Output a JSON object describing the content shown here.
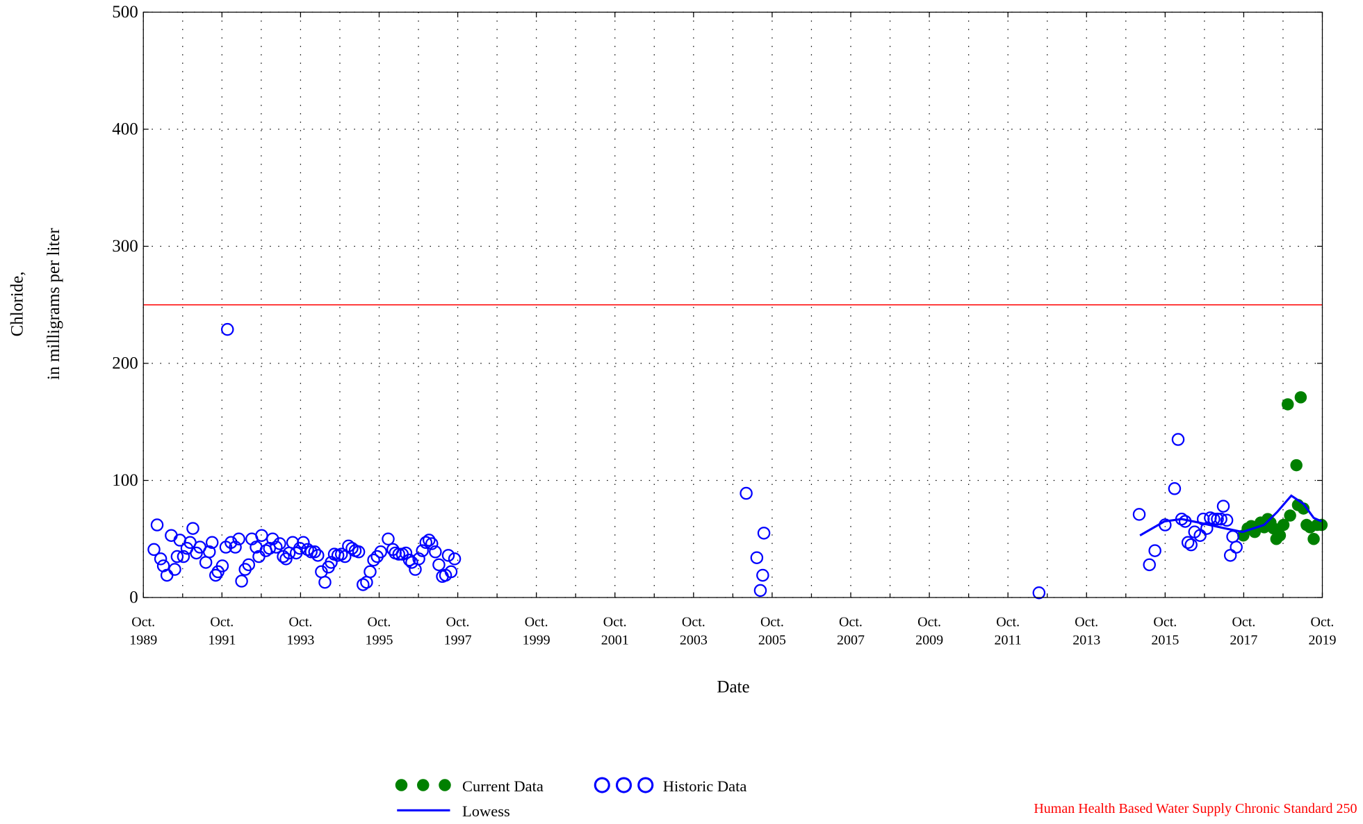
{
  "chart_data": {
    "type": "scatter",
    "xlabel": "Date",
    "ylabel": [
      "Chloride,",
      "in milligrams per liter"
    ],
    "xlim": [
      1989.75,
      2019.75
    ],
    "xticks": [
      {
        "value": 1989.75,
        "label": "Oct. 1989"
      },
      {
        "value": 1991.75,
        "label": "Oct. 1991"
      },
      {
        "value": 1993.75,
        "label": "Oct. 1993"
      },
      {
        "value": 1995.75,
        "label": "Oct. 1995"
      },
      {
        "value": 1997.75,
        "label": "Oct. 1997"
      },
      {
        "value": 1999.75,
        "label": "Oct. 1999"
      },
      {
        "value": 2001.75,
        "label": "Oct. 2001"
      },
      {
        "value": 2003.75,
        "label": "Oct. 2003"
      },
      {
        "value": 2005.75,
        "label": "Oct. 2005"
      },
      {
        "value": 2007.75,
        "label": "Oct. 2007"
      },
      {
        "value": 2009.75,
        "label": "Oct. 2009"
      },
      {
        "value": 2011.75,
        "label": "Oct. 2011"
      },
      {
        "value": 2013.75,
        "label": "Oct. 2013"
      },
      {
        "value": 2015.75,
        "label": "Oct. 2015"
      },
      {
        "value": 2017.75,
        "label": "Oct. 2017"
      },
      {
        "value": 2019.75,
        "label": "Oct. 2019"
      }
    ],
    "xgrid_minor": [
      1990.75,
      1992.75,
      1994.75,
      1996.75,
      1998.75,
      2000.75,
      2002.75,
      2004.75,
      2006.75,
      2008.75,
      2010.75,
      2012.75,
      2014.75,
      2016.75,
      2018.75
    ],
    "ylim": [
      0,
      500
    ],
    "yticks": [
      0,
      100,
      200,
      300,
      400,
      500
    ],
    "grid": true,
    "reference_line": {
      "value": 250,
      "color": "#ff0000",
      "label": "Human Health Based Water Supply Chronic Standard 250"
    },
    "series": [
      {
        "name": "Current Data",
        "color": "#008000",
        "marker": "filled",
        "x": [
          2017.74,
          2017.85,
          2017.94,
          2018.03,
          2018.12,
          2018.18,
          2018.27,
          2018.36,
          2018.43,
          2018.51,
          2018.58,
          2018.67,
          2018.76,
          2018.87,
          2018.93,
          2019.09,
          2019.13,
          2019.2,
          2019.27,
          2019.35,
          2019.44,
          2019.53,
          2019.62,
          2019.73
        ],
        "values": [
          53,
          59,
          61,
          56,
          61,
          64,
          60,
          67,
          64,
          59,
          50,
          53,
          62,
          165,
          70,
          113,
          79,
          171,
          76,
          62,
          60,
          50,
          62,
          62
        ]
      },
      {
        "name": "Historic Data",
        "color": "#0000ff",
        "marker": "open",
        "x": [
          1990.02,
          1990.1,
          1990.19,
          1990.26,
          1990.35,
          1990.46,
          1990.55,
          1990.61,
          1990.68,
          1990.77,
          1990.86,
          1990.94,
          1991.01,
          1991.1,
          1991.19,
          1991.34,
          1991.43,
          1991.5,
          1991.59,
          1991.65,
          1991.76,
          1991.85,
          1991.89,
          1991.98,
          1992.09,
          1992.18,
          1992.25,
          1992.34,
          1992.43,
          1992.51,
          1992.62,
          1992.69,
          1992.76,
          1992.87,
          1992.96,
          1993.04,
          1993.13,
          1993.22,
          1993.31,
          1993.38,
          1993.46,
          1993.55,
          1993.64,
          1993.73,
          1993.82,
          1993.93,
          1994.02,
          1994.11,
          1994.19,
          1994.28,
          1994.37,
          1994.46,
          1994.53,
          1994.61,
          1994.7,
          1994.79,
          1994.88,
          1994.97,
          1995.06,
          1995.14,
          1995.23,
          1995.34,
          1995.43,
          1995.52,
          1995.61,
          1995.7,
          1995.79,
          1995.98,
          1996.1,
          1996.16,
          1996.25,
          1996.34,
          1996.43,
          1996.52,
          1996.58,
          1996.67,
          1996.76,
          1996.85,
          1996.94,
          1997.02,
          1997.09,
          1997.18,
          1997.27,
          1997.36,
          1997.44,
          1997.51,
          1997.58,
          1997.67,
          2005.09,
          2005.36,
          2005.45,
          2005.51,
          2005.54,
          2012.54,
          2015.09,
          2015.35,
          2015.49,
          2015.75,
          2015.99,
          2016.08,
          2016.17,
          2016.26,
          2016.33,
          2016.41,
          2016.5,
          2016.64,
          2016.72,
          2016.81,
          2016.9,
          2016.99,
          2017.08,
          2017.17,
          2017.23,
          2017.32,
          2017.41,
          2017.47,
          2017.56
        ],
        "values": [
          41,
          62,
          33,
          27,
          19,
          53,
          24,
          35,
          49,
          35,
          42,
          47,
          59,
          38,
          43,
          30,
          39,
          47,
          19,
          22,
          27,
          43,
          229,
          47,
          43,
          50,
          14,
          24,
          28,
          50,
          43,
          35,
          53,
          40,
          42,
          50,
          43,
          46,
          35,
          33,
          38,
          47,
          38,
          42,
          47,
          41,
          39,
          39,
          36,
          22,
          13,
          26,
          30,
          37,
          36,
          37,
          35,
          44,
          42,
          40,
          39,
          11,
          13,
          22,
          32,
          35,
          39,
          50,
          41,
          38,
          37,
          37,
          38,
          32,
          30,
          24,
          33,
          40,
          47,
          49,
          46,
          39,
          28,
          18,
          19,
          36,
          22,
          33,
          89,
          34,
          6,
          19,
          55,
          4,
          71,
          28,
          40,
          62,
          93,
          135,
          67,
          65,
          47,
          45,
          56,
          53,
          67,
          59,
          68,
          67,
          67,
          67,
          78,
          66,
          36,
          52,
          43
        ]
      },
      {
        "name": "Lowess",
        "color": "#0000ff",
        "marker": "line",
        "x": [
          2015.11,
          2015.73,
          2016.17,
          2016.61,
          2017.28,
          2017.72,
          2018.27,
          2018.6,
          2018.96,
          2019.27,
          2019.53,
          2019.73
        ],
        "values": [
          53,
          65,
          67,
          64,
          59,
          56,
          62,
          73,
          87,
          80,
          68,
          65
        ]
      }
    ]
  }
}
